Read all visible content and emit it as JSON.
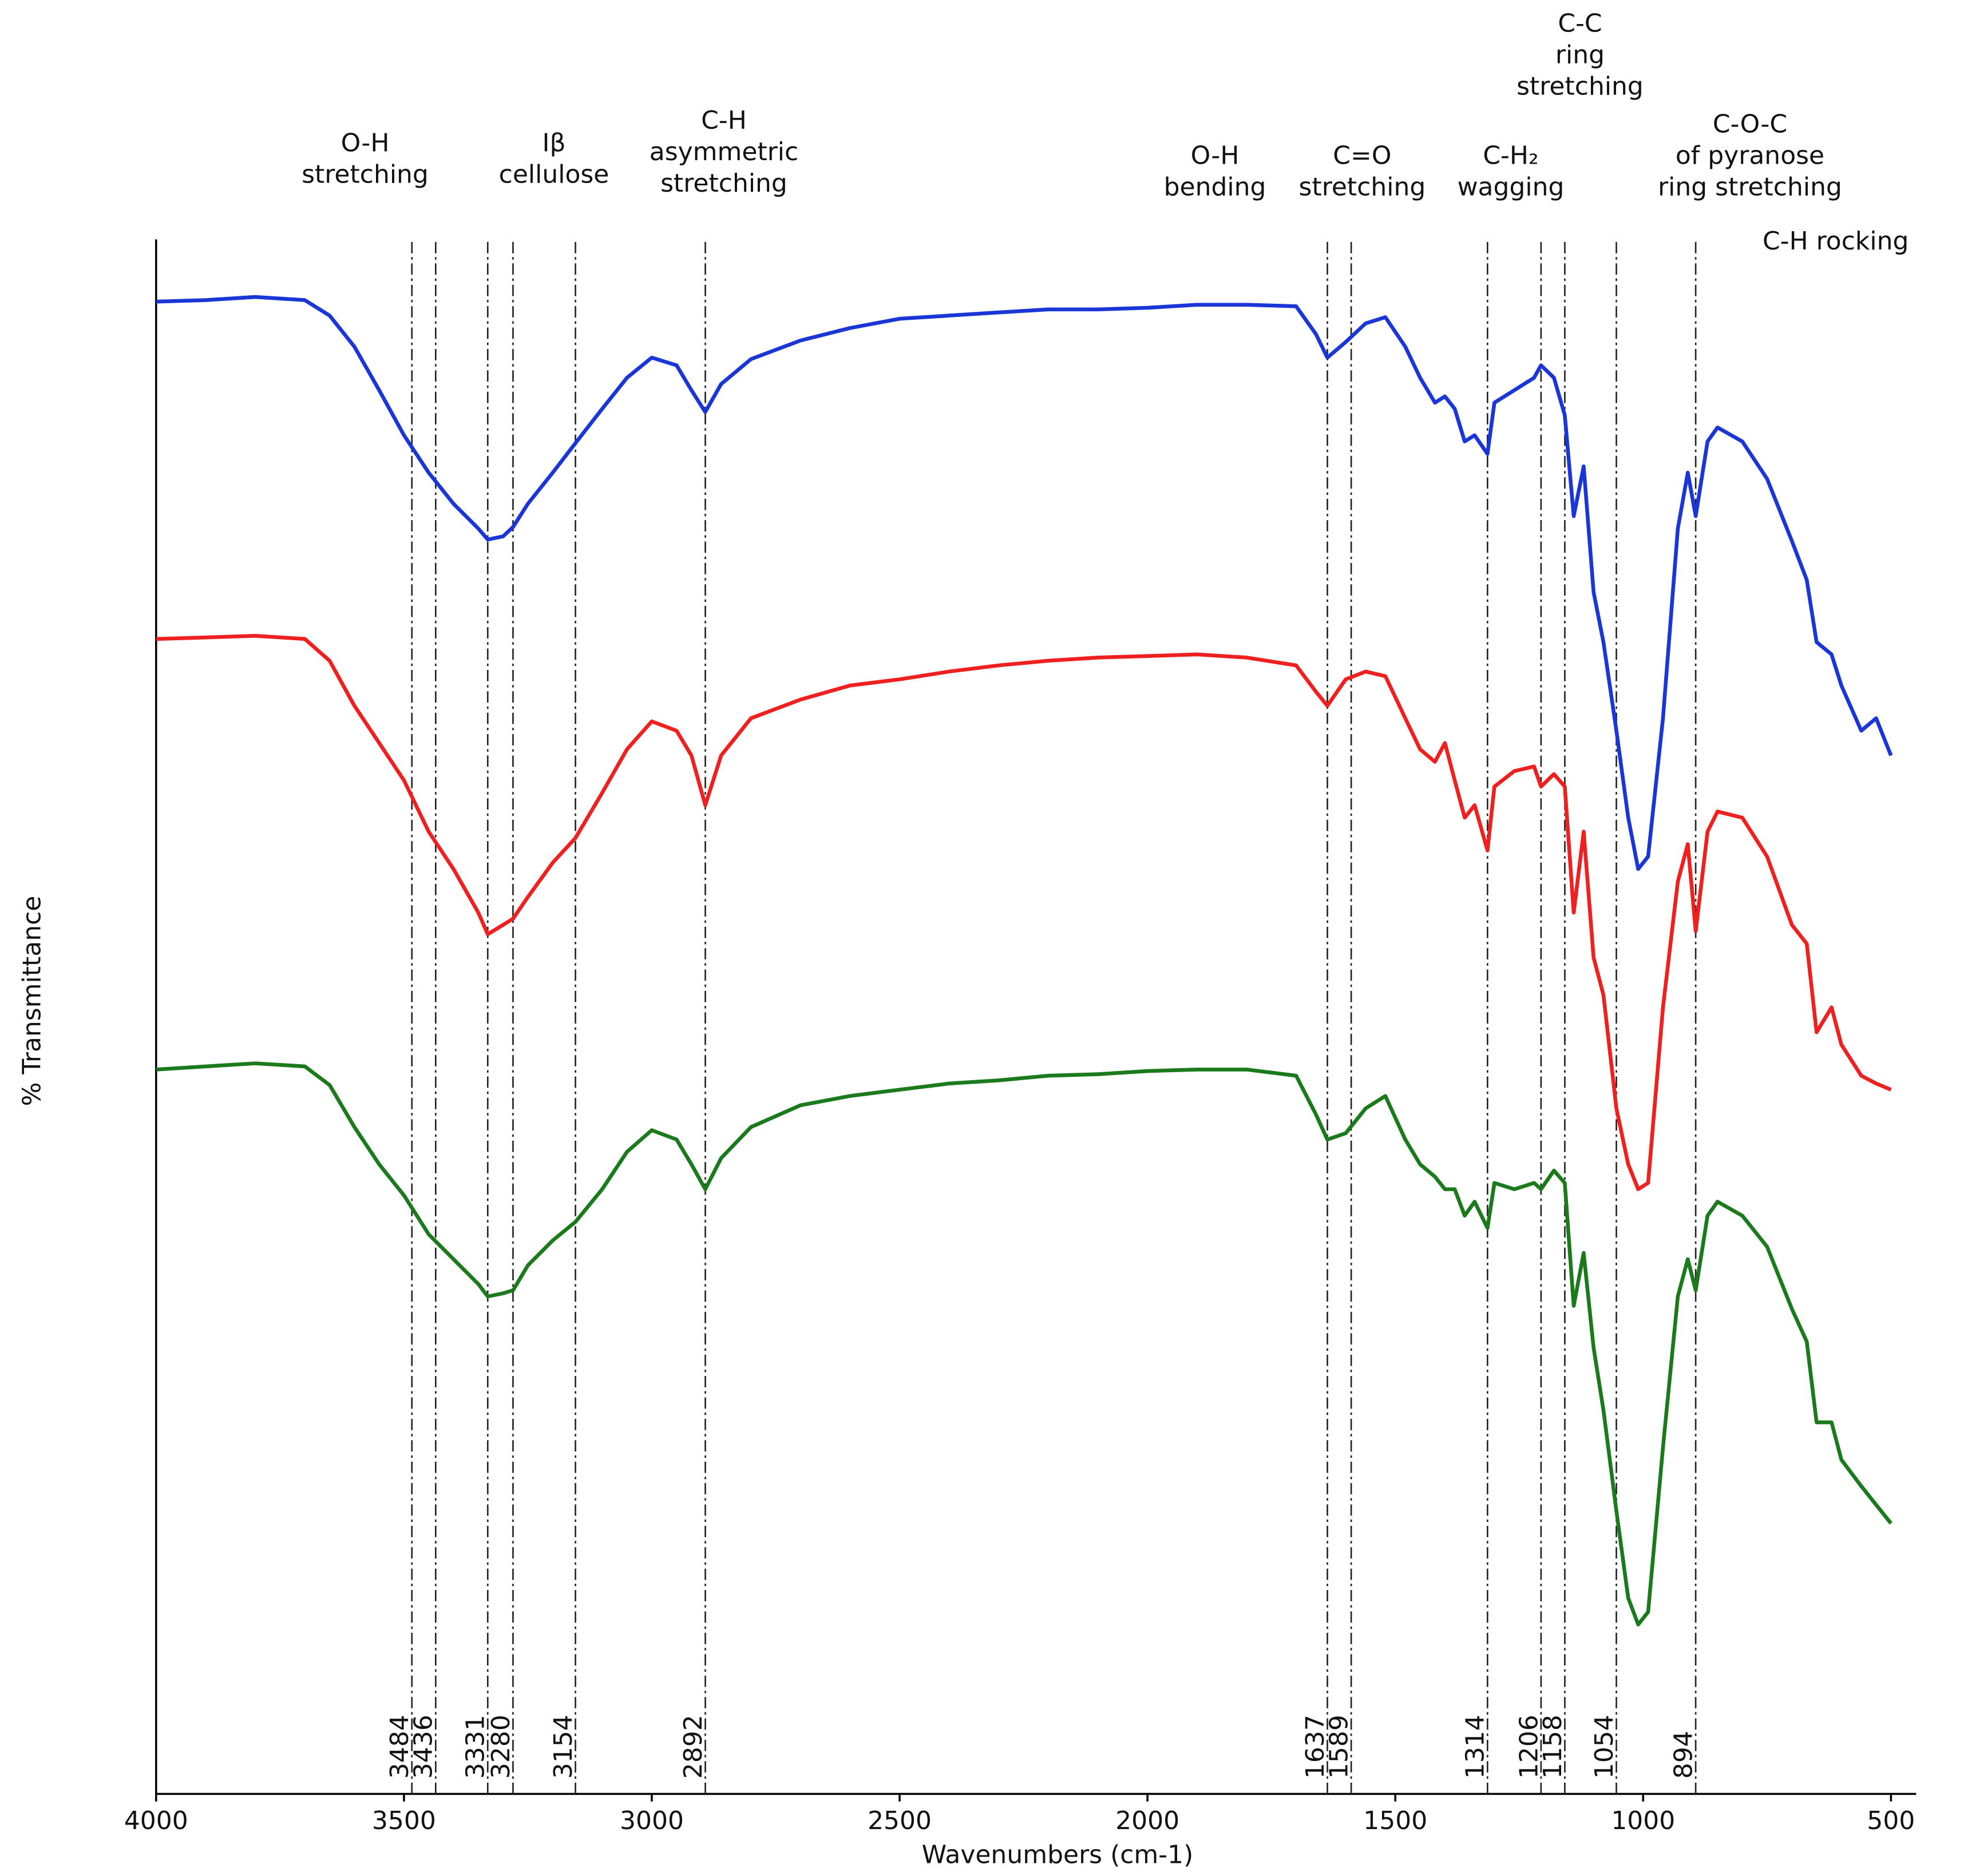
{
  "chart_data": {
    "type": "line",
    "x_label": "Wavenumbers (cm-1)",
    "y_label": "% Transmittance",
    "xlim": [
      4000,
      500
    ],
    "xticks": [
      4000,
      3500,
      3000,
      2500,
      2000,
      1500,
      1000,
      500
    ],
    "ylim": [
      0,
      100
    ],
    "x": [
      4000,
      3900,
      3800,
      3700,
      3650,
      3600,
      3550,
      3500,
      3450,
      3400,
      3350,
      3331,
      3300,
      3280,
      3250,
      3200,
      3154,
      3100,
      3050,
      3000,
      2950,
      2920,
      2892,
      2860,
      2800,
      2700,
      2600,
      2500,
      2400,
      2300,
      2200,
      2100,
      2000,
      1900,
      1800,
      1700,
      1660,
      1637,
      1600,
      1560,
      1520,
      1480,
      1450,
      1420,
      1400,
      1380,
      1360,
      1340,
      1314,
      1300,
      1260,
      1220,
      1206,
      1180,
      1158,
      1140,
      1120,
      1100,
      1080,
      1054,
      1030,
      1010,
      990,
      960,
      930,
      910,
      894,
      870,
      850,
      800,
      750,
      700,
      670,
      650,
      620,
      600,
      560,
      530,
      500
    ],
    "series": [
      {
        "color": "#1a36d6",
        "values": [
          96.0,
          96.1,
          96.3,
          96.1,
          95.1,
          93.1,
          90.3,
          87.4,
          85.0,
          83.0,
          81.4,
          80.7,
          80.9,
          81.5,
          83.0,
          85.0,
          86.9,
          89.1,
          91.1,
          92.4,
          91.9,
          90.3,
          88.9,
          90.7,
          92.3,
          93.5,
          94.3,
          94.9,
          95.1,
          95.3,
          95.5,
          95.5,
          95.6,
          95.8,
          95.8,
          95.7,
          93.9,
          92.4,
          93.4,
          94.6,
          95.0,
          93.1,
          91.1,
          89.5,
          89.9,
          89.1,
          87.0,
          87.4,
          86.2,
          89.5,
          90.3,
          91.1,
          91.9,
          91.1,
          88.7,
          82.2,
          85.4,
          77.3,
          74.1,
          68.4,
          62.8,
          59.5,
          60.3,
          69.2,
          81.4,
          85.0,
          82.2,
          87.0,
          87.9,
          87.0,
          84.6,
          80.6,
          78.1,
          74.1,
          73.3,
          71.3,
          68.4,
          69.2,
          66.8
        ]
      },
      {
        "color": "#ee2020",
        "values": [
          74.3,
          74.4,
          74.5,
          74.3,
          72.9,
          70.0,
          67.6,
          65.2,
          61.9,
          59.5,
          56.7,
          55.3,
          55.9,
          56.3,
          57.7,
          59.9,
          61.5,
          64.4,
          67.2,
          69.0,
          68.4,
          66.8,
          63.6,
          66.8,
          69.2,
          70.4,
          71.3,
          71.7,
          72.2,
          72.6,
          72.9,
          73.1,
          73.2,
          73.3,
          73.1,
          72.6,
          70.9,
          70.0,
          71.7,
          72.2,
          71.9,
          69.2,
          67.2,
          66.4,
          67.6,
          65.2,
          62.8,
          63.6,
          60.7,
          64.8,
          65.8,
          66.1,
          64.8,
          65.6,
          64.8,
          56.7,
          61.9,
          53.8,
          51.4,
          44.1,
          40.5,
          38.9,
          39.3,
          50.6,
          58.7,
          61.1,
          55.5,
          61.9,
          63.2,
          62.8,
          60.3,
          55.9,
          54.7,
          49.0,
          50.6,
          48.2,
          46.2,
          45.7,
          45.3
        ]
      },
      {
        "color": "#1b7a1b",
        "values": [
          46.6,
          46.8,
          47.0,
          46.8,
          45.6,
          42.9,
          40.5,
          38.5,
          36.0,
          34.4,
          32.8,
          32.0,
          32.2,
          32.4,
          34.0,
          35.6,
          36.8,
          38.9,
          41.3,
          42.7,
          42.1,
          40.5,
          38.9,
          40.9,
          42.9,
          44.3,
          44.9,
          45.3,
          45.7,
          45.9,
          46.2,
          46.3,
          46.5,
          46.6,
          46.6,
          46.2,
          43.7,
          42.1,
          42.5,
          44.1,
          44.9,
          42.1,
          40.5,
          39.7,
          38.9,
          38.9,
          37.2,
          38.1,
          36.4,
          39.3,
          38.9,
          39.3,
          38.9,
          40.1,
          39.3,
          31.4,
          34.8,
          28.7,
          24.7,
          18.2,
          12.6,
          10.9,
          11.7,
          22.3,
          32.0,
          34.4,
          32.4,
          37.2,
          38.1,
          37.2,
          35.2,
          31.2,
          29.1,
          23.9,
          23.9,
          21.5,
          19.8,
          18.6,
          17.4
        ]
      }
    ],
    "peaks": [
      3484,
      3436,
      3331,
      3280,
      3154,
      2892,
      1637,
      1589,
      1314,
      1206,
      1158,
      1054,
      894
    ],
    "annotations": [
      {
        "lines": [
          "O-H",
          "stretching"
        ]
      },
      {
        "lines": [
          "Iβ",
          "cellulose"
        ]
      },
      {
        "lines": [
          "C-H",
          "asymmetric",
          "stretching"
        ]
      },
      {
        "lines": [
          "O-H",
          "bending"
        ]
      },
      {
        "lines": [
          "C=O",
          "stretching"
        ]
      },
      {
        "lines": [
          "C-H₂",
          "wagging"
        ]
      },
      {
        "lines": [
          "C-C",
          "ring",
          "stretching"
        ]
      },
      {
        "lines": [
          "C-O-C",
          "of pyranose",
          "ring stretching"
        ]
      },
      {
        "lines": [
          "C-H rocking"
        ]
      }
    ]
  }
}
